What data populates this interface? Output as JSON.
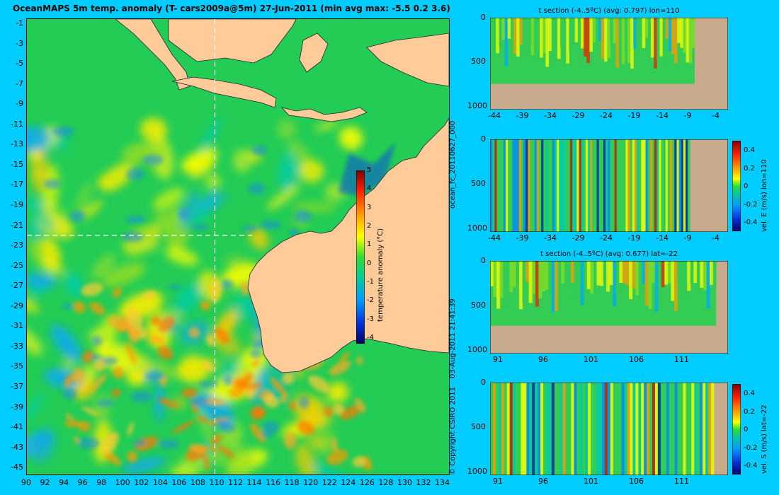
{
  "map": {
    "title": "OceanMAPS 5m temp. anomaly (T- cars2009a@5m) 27-Jun-2011 (min avg max: -5.5 0.2 3.6)",
    "lon_ticks": [
      "90",
      "92",
      "94",
      "96",
      "98",
      "100",
      "102",
      "104",
      "106",
      "108",
      "110",
      "112",
      "114",
      "116",
      "118",
      "120",
      "122",
      "124",
      "126",
      "128",
      "130",
      "132",
      "134"
    ],
    "lat_ticks": [
      "-1",
      "-3",
      "-5",
      "-7",
      "-9",
      "-11",
      "-13",
      "-15",
      "-17",
      "-19",
      "-21",
      "-23",
      "-25",
      "-27",
      "-29",
      "-31",
      "-33",
      "-35",
      "-37",
      "-39",
      "-41",
      "-43",
      "-45"
    ],
    "crosshair": {
      "lon": 110,
      "lat": -22
    },
    "colorbar": {
      "label": "temperature anomaly (°C)",
      "ticks": [
        "5",
        "4",
        "3",
        "2",
        "1",
        "0",
        "-1",
        "-2",
        "-3",
        "-4"
      ]
    },
    "colors": {
      "background": "#00ccff",
      "land": "#ffcc99",
      "ocean_base": "#22cc55",
      "section_bottom": "#c8aa8c"
    }
  },
  "side_text": {
    "run_id": "ocean_fc_20110627_000",
    "timestamp": "03-Aug-2011 21:41:39",
    "copyright": "© Copyright CSIRO 2011"
  },
  "panels": {
    "p1": {
      "title": "t section (-4..5ºC) (avg: 0.797) lon=110",
      "x_ticks": [
        "-44",
        "-39",
        "-34",
        "-29",
        "-24",
        "-19",
        "-14",
        "-9",
        "-4"
      ],
      "y_ticks": [
        "0",
        "500",
        "1000"
      ]
    },
    "p2": {
      "title": "",
      "x_ticks": [
        "-44",
        "-39",
        "-34",
        "-29",
        "-24",
        "-19",
        "-14",
        "-9",
        "-4"
      ],
      "y_ticks": [
        "0",
        "500",
        "1000"
      ],
      "cbar_label": "vel. E (m/s) lon=110",
      "cbar_ticks": [
        "0.4",
        "0.2",
        "0",
        "-0.2",
        "-0.4"
      ]
    },
    "p3": {
      "title": "t section (-4..5ºC) (avg: 0.677) lat=-22",
      "x_ticks": [
        "91",
        "96",
        "101",
        "106",
        "111"
      ],
      "y_ticks": [
        "0",
        "500",
        "1000"
      ]
    },
    "p4": {
      "title": "",
      "x_ticks": [
        "91",
        "96",
        "101",
        "106",
        "111"
      ],
      "y_ticks": [
        "0",
        "500",
        "1000"
      ],
      "cbar_label": "vel. S (m/s) lat=-22",
      "cbar_ticks": [
        "0.4",
        "0.2",
        "0",
        "-0.2",
        "-0.4"
      ]
    }
  }
}
